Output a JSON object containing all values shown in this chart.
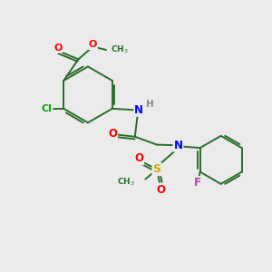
{
  "background_color": "#ebebeb",
  "bond_color": "#2d6b2d",
  "atom_colors": {
    "O": "#ff0000",
    "N": "#0000ff",
    "Cl": "#00aa00",
    "S": "#ccaa00",
    "F": "#aa44aa",
    "H": "#888888",
    "C": "#2d6b2d"
  },
  "figsize": [
    3.0,
    3.0
  ],
  "dpi": 100
}
